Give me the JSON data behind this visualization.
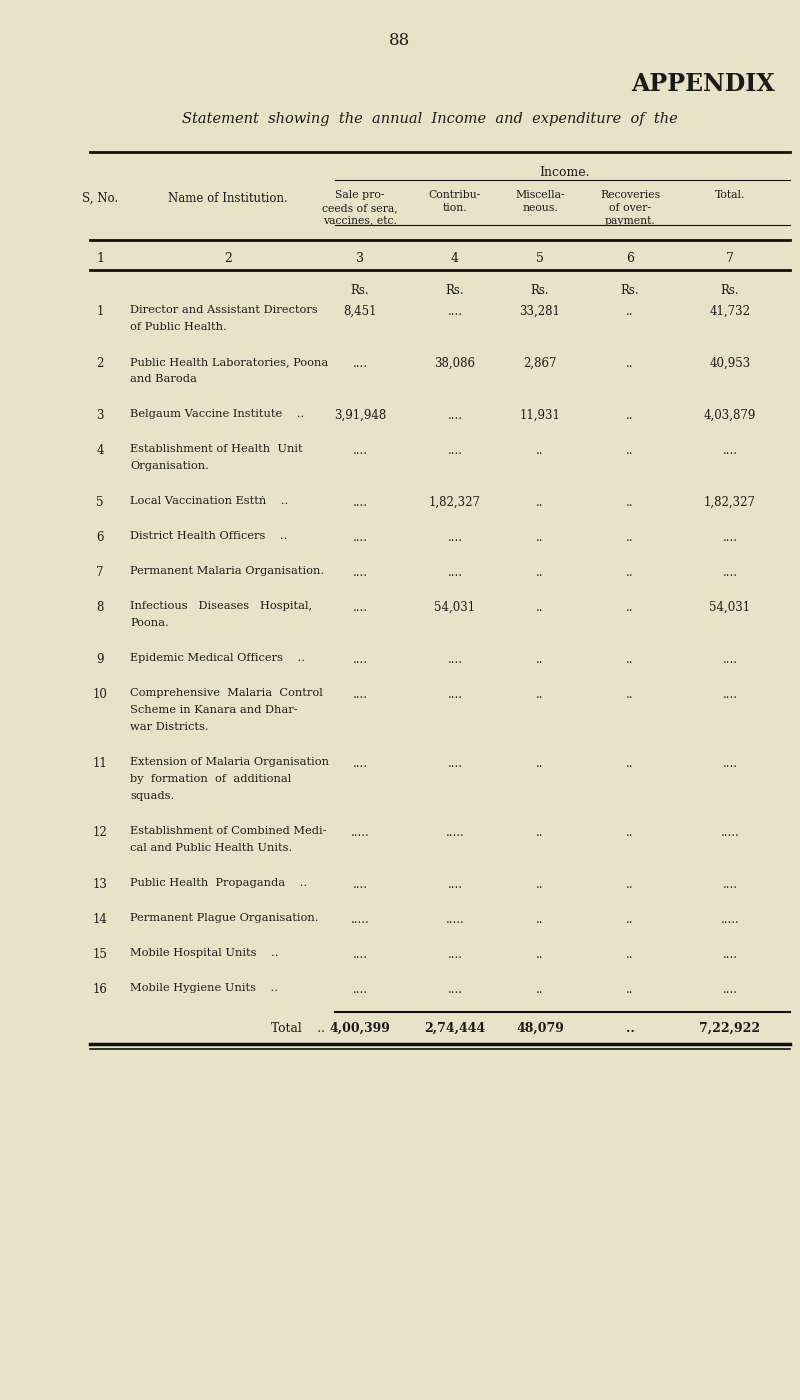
{
  "bg_color": "#e8e3c8",
  "page_number": "88",
  "appendix_title": "APPENDIX",
  "statement_title": "Statement  showing  the  annual  Income  and  expenditure  of  the",
  "income_label": "Income.",
  "col_numbers": [
    "1",
    "2",
    "3",
    "4",
    "5",
    "6",
    "7"
  ],
  "rs_labels": [
    "Rs.",
    "Rs.",
    "Rs.",
    "Rs.",
    "Rs."
  ],
  "col_header_texts": [
    "Sale pro-\nceeds of sera,\nvaccines, etc.",
    "Contribu-\ntion.",
    "Miscella-\nneous.",
    "Recoveries\nof over-\npayment.",
    "Total."
  ],
  "rows": [
    {
      "num": "1",
      "name": [
        "Director and Assistant Directors",
        "of Public Health."
      ],
      "col3": "8,451",
      "col4": "....",
      "col5": "33,281",
      "col6": "..",
      "col7": "41,732"
    },
    {
      "num": "2",
      "name": [
        "Public Health Laboratories, Poona",
        "and Baroda"
      ],
      "col3": "....",
      "col4": "38,086",
      "col5": "2,867",
      "col6": "..",
      "col7": "40,953"
    },
    {
      "num": "3",
      "name": [
        "Belgaum Vaccine Institute    .."
      ],
      "col3": "3,91,948",
      "col4": "....",
      "col5": "11,931",
      "col6": "..",
      "col7": "4,03,879"
    },
    {
      "num": "4",
      "name": [
        "Establishment of Health  Unit",
        "Organisation."
      ],
      "col3": "....",
      "col4": "....",
      "col5": "..",
      "col6": "..",
      "col7": "...."
    },
    {
      "num": "5",
      "name": [
        "Local Vaccination Esttṅ    .."
      ],
      "col3": "....",
      "col4": "1,82,327",
      "col5": "..",
      "col6": "..",
      "col7": "1,82,327"
    },
    {
      "num": "6",
      "name": [
        "District Health Officers    .."
      ],
      "col3": "....",
      "col4": "....",
      "col5": "..",
      "col6": "..",
      "col7": "...."
    },
    {
      "num": "7",
      "name": [
        "Permanent Malaria Organisation."
      ],
      "col3": "....",
      "col4": "....",
      "col5": "..",
      "col6": "..",
      "col7": "...."
    },
    {
      "num": "8",
      "name": [
        "Infectious   Diseases   Hospital,",
        "Poona."
      ],
      "col3": "....",
      "col4": "54,031",
      "col5": "..",
      "col6": "..",
      "col7": "54,031"
    },
    {
      "num": "9",
      "name": [
        "Epidemic Medical Officers    .."
      ],
      "col3": "....",
      "col4": "....",
      "col5": "..",
      "col6": "..",
      "col7": "...."
    },
    {
      "num": "10",
      "name": [
        "Comprehensive  Malaria  Control",
        "Scheme in Kanara and Dhar-",
        "war Districts."
      ],
      "col3": "....",
      "col4": "....",
      "col5": "..",
      "col6": "..",
      "col7": "...."
    },
    {
      "num": "11",
      "name": [
        "Extension of Malaria Organisation",
        "by  formation  of  additional",
        "squads."
      ],
      "col3": "....",
      "col4": "....",
      "col5": "..",
      "col6": "..",
      "col7": "...."
    },
    {
      "num": "12",
      "name": [
        "Establishment of Combined Medi-",
        "cal and Public Health Units."
      ],
      "col3": ".....",
      "col4": ".....",
      "col5": "..",
      "col6": "..",
      "col7": "....."
    },
    {
      "num": "13",
      "name": [
        "Public Health  Propaganda    .."
      ],
      "col3": "....",
      "col4": "....",
      "col5": "..",
      "col6": "..",
      "col7": "...."
    },
    {
      "num": "14",
      "name": [
        "Permanent Plague Organisation."
      ],
      "col3": ".....",
      "col4": ".....",
      "col5": "..",
      "col6": "..",
      "col7": "....."
    },
    {
      "num": "15",
      "name": [
        "Mobile Hospital Units    .."
      ],
      "col3": "....",
      "col4": "....",
      "col5": "..",
      "col6": "..",
      "col7": "...."
    },
    {
      "num": "16",
      "name": [
        "Mobile Hygiene Units    .."
      ],
      "col3": "....",
      "col4": "....",
      "col5": "..",
      "col6": "..",
      "col7": "...."
    }
  ],
  "total_label": "Total    ..",
  "total_col3": "4,00,399",
  "total_col4": "2,74,444",
  "total_col5": "48,079",
  "total_col6": "..",
  "total_col7": "7,22,922",
  "text_color": "#1a1a1a",
  "line_color": "#111111"
}
